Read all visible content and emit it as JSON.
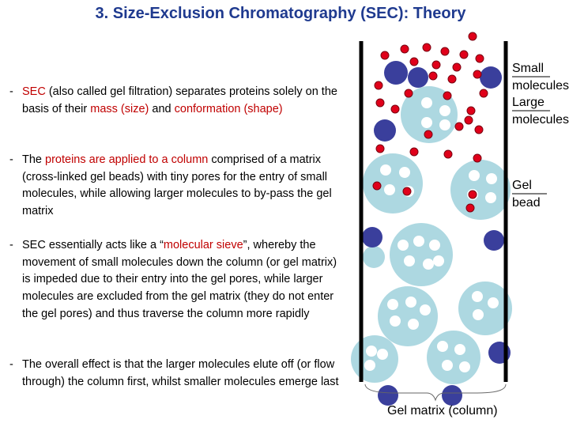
{
  "title": "3. Size-Exclusion Chromatography (SEC): Theory",
  "bullets": [
    {
      "segments": [
        {
          "text": "SEC",
          "color": "#c00000"
        },
        {
          "text": " (also called gel filtration) separates proteins solely on the basis of their "
        },
        {
          "text": "mass (size)",
          "color": "#c00000"
        },
        {
          "text": " and "
        },
        {
          "text": "conformation (shape)",
          "color": "#c00000"
        }
      ]
    },
    {
      "segments": [
        {
          "text": "The "
        },
        {
          "text": "proteins are applied to a column",
          "color": "#c00000"
        },
        {
          "text": " comprised of a matrix (cross-linked gel beads) with tiny pores for the entry of small molecules, while allowing larger molecules to by-pass the gel matrix"
        }
      ]
    },
    {
      "segments": [
        {
          "text": "SEC essentially acts like a “"
        },
        {
          "text": "molecular sieve",
          "color": "#c00000"
        },
        {
          "text": "”, whereby the movement of small molecules down the column (or gel matrix) is impeded due to their entry into the gel pores, while larger molecules are excluded from the gel matrix (they do not enter the gel pores) and thus traverse the column more rapidly"
        }
      ]
    },
    {
      "segments": [
        {
          "text": "The overall effect is that the larger molecules elute off (or flow through) the column first, whilst smaller molecules emerge last"
        }
      ]
    }
  ],
  "labels": {
    "small_molecules": "Small molecules",
    "large_molecules": "Large molecules",
    "gel_bead": "Gel bead",
    "gel_matrix": "Gel matrix (column)"
  },
  "colors": {
    "title": "#1f3a8f",
    "highlight": "#c00000",
    "small_molecule": "#e0001a",
    "large_molecule": "#3a3f9c",
    "gel_bead": "#add8e1",
    "pore": "#ffffff",
    "column_wall": "#000000"
  }
}
